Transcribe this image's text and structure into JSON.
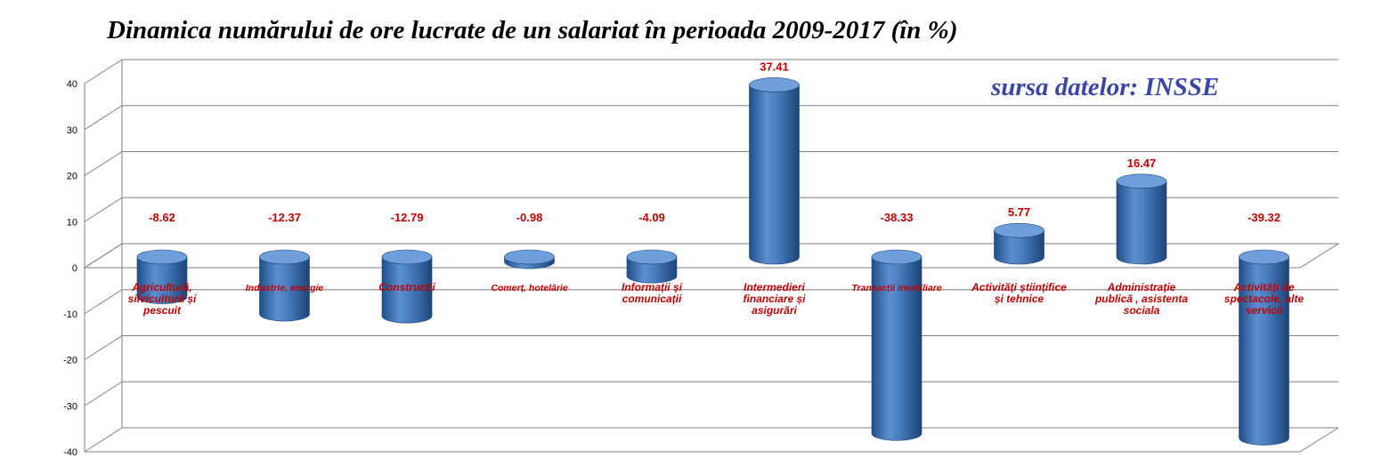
{
  "chart_data": {
    "type": "bar",
    "title": "Dinamica numărului de ore lucrate de un salariat în perioada 2009-2017 (în %)",
    "annotation": "sursa datelor: INSSE",
    "xlabel": "",
    "ylabel": "",
    "ylim": [
      -40,
      40
    ],
    "yticks": [
      40,
      30,
      20,
      10,
      0,
      -10,
      -20,
      -30,
      -40
    ],
    "categories": [
      "Agricultură, silvicultură și pescuit",
      "Industrie, energie",
      "Construcții",
      "Comerț, hotelărie",
      "Informații și comunicații",
      "Intermedieri financiare și asigurări",
      "Tranzacții imobiliare",
      "Activități științifice și tehnice",
      "Administrație publică , asistenta sociala",
      "Activități de spectacole, alte servicii"
    ],
    "category_lines": [
      [
        "Agricultură,",
        "silvicultură și",
        "pescuit"
      ],
      [
        "Industrie, energie"
      ],
      [
        "Construcții"
      ],
      [
        "Comerț, hotelărie"
      ],
      [
        "Informații și",
        "comunicații"
      ],
      [
        "Intermedieri",
        "financiare și",
        "asigurări"
      ],
      [
        "Tranzacții imobiliare"
      ],
      [
        "Activități științifice",
        "și tehnice"
      ],
      [
        "Administrație",
        "publică , asistenta",
        "sociala"
      ],
      [
        "Activități de",
        "spectacole, alte",
        "servicii"
      ]
    ],
    "values": [
      -8.62,
      -12.37,
      -12.79,
      -0.98,
      -4.09,
      37.41,
      -38.33,
      5.77,
      16.47,
      -39.32
    ],
    "value_labels": [
      "-8.62",
      "-12.37",
      "-12.79",
      "-0.98",
      "-4.09",
      "37.41",
      "-38.33",
      "5.77",
      "16.47",
      "-39.32"
    ],
    "grid": true,
    "colors": {
      "bar": "#4a7ebf",
      "bar_dark": "#1f4e8a",
      "bar_light": "#8fb4e3",
      "labels": "#c00000",
      "grid": "#7f7f7f",
      "annotation": "#3a45a8"
    }
  }
}
